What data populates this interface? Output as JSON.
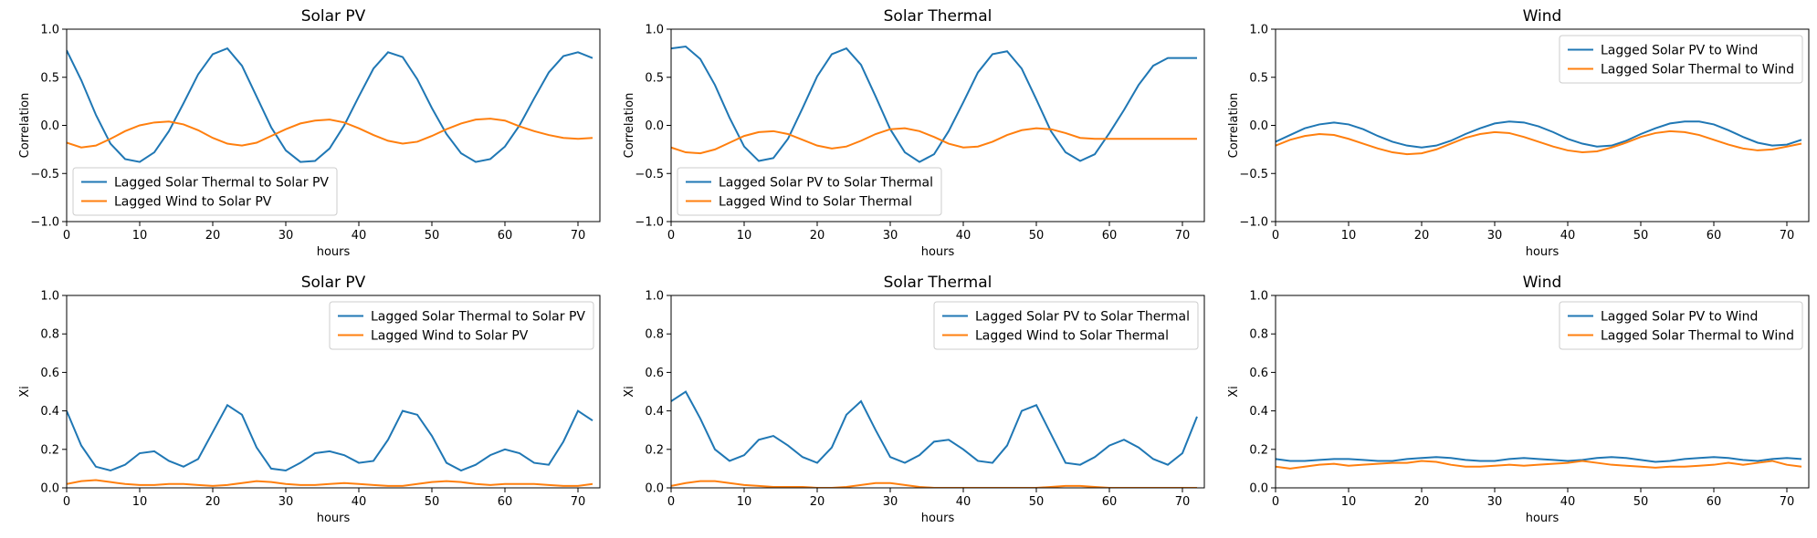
{
  "chart_data": [
    {
      "type": "line",
      "title": "Solar PV",
      "xlabel": "hours",
      "ylabel": "Correlation",
      "xlim": [
        0,
        73
      ],
      "ylim": [
        -1.0,
        1.0
      ],
      "xticks": [
        "0",
        "10",
        "20",
        "30",
        "40",
        "50",
        "60",
        "70"
      ],
      "yticks": [
        "−1.0",
        "−0.5",
        "0.0",
        "0.5",
        "1.0"
      ],
      "legend": "lower-left",
      "grid": false,
      "x": [
        0,
        2,
        4,
        6,
        8,
        10,
        12,
        14,
        16,
        18,
        20,
        22,
        24,
        26,
        28,
        30,
        32,
        34,
        36,
        38,
        40,
        42,
        44,
        46,
        48,
        50,
        52,
        54,
        56,
        58,
        60,
        62,
        64,
        66,
        68,
        70,
        72
      ],
      "series": [
        {
          "name": "Lagged Solar Thermal to Solar PV",
          "color": "#1f77b4",
          "values": [
            0.78,
            0.47,
            0.11,
            -0.19,
            -0.35,
            -0.38,
            -0.28,
            -0.06,
            0.23,
            0.53,
            0.74,
            0.8,
            0.62,
            0.3,
            -0.02,
            -0.26,
            -0.38,
            -0.37,
            -0.24,
            0.0,
            0.3,
            0.59,
            0.76,
            0.71,
            0.48,
            0.18,
            -0.09,
            -0.29,
            -0.38,
            -0.35,
            -0.22,
            0.0,
            0.28,
            0.55,
            0.72,
            0.76,
            0.7
          ]
        },
        {
          "name": "Lagged Wind to Solar PV",
          "color": "#ff7f0e",
          "values": [
            -0.18,
            -0.23,
            -0.21,
            -0.14,
            -0.06,
            0.0,
            0.03,
            0.04,
            0.01,
            -0.05,
            -0.13,
            -0.19,
            -0.21,
            -0.18,
            -0.11,
            -0.04,
            0.02,
            0.05,
            0.06,
            0.03,
            -0.03,
            -0.1,
            -0.16,
            -0.19,
            -0.17,
            -0.11,
            -0.04,
            0.02,
            0.06,
            0.07,
            0.05,
            -0.01,
            -0.06,
            -0.1,
            -0.13,
            -0.14,
            -0.13
          ]
        }
      ]
    },
    {
      "type": "line",
      "title": "Solar Thermal",
      "xlabel": "hours",
      "ylabel": "Correlation",
      "xlim": [
        0,
        73
      ],
      "ylim": [
        -1.0,
        1.0
      ],
      "xticks": [
        "0",
        "10",
        "20",
        "30",
        "40",
        "50",
        "60",
        "70"
      ],
      "yticks": [
        "−1.0",
        "−0.5",
        "0.0",
        "0.5",
        "1.0"
      ],
      "legend": "lower-left",
      "grid": false,
      "x": [
        0,
        2,
        4,
        6,
        8,
        10,
        12,
        14,
        16,
        18,
        20,
        22,
        24,
        26,
        28,
        30,
        32,
        34,
        36,
        38,
        40,
        42,
        44,
        46,
        48,
        50,
        52,
        54,
        56,
        58,
        60,
        62,
        64,
        66,
        68,
        70,
        72
      ],
      "series": [
        {
          "name": "Lagged Solar PV to Solar Thermal",
          "color": "#1f77b4",
          "values": [
            0.8,
            0.82,
            0.69,
            0.42,
            0.08,
            -0.22,
            -0.37,
            -0.34,
            -0.14,
            0.18,
            0.51,
            0.74,
            0.8,
            0.63,
            0.3,
            -0.04,
            -0.28,
            -0.38,
            -0.3,
            -0.06,
            0.24,
            0.55,
            0.74,
            0.77,
            0.59,
            0.27,
            -0.06,
            -0.28,
            -0.37,
            -0.3,
            -0.08,
            0.16,
            0.42,
            0.62,
            0.7,
            0.7,
            0.7
          ]
        },
        {
          "name": "Lagged Wind to Solar Thermal",
          "color": "#ff7f0e",
          "values": [
            -0.23,
            -0.28,
            -0.29,
            -0.25,
            -0.18,
            -0.11,
            -0.07,
            -0.06,
            -0.09,
            -0.15,
            -0.21,
            -0.24,
            -0.22,
            -0.16,
            -0.09,
            -0.04,
            -0.03,
            -0.06,
            -0.12,
            -0.19,
            -0.23,
            -0.22,
            -0.17,
            -0.1,
            -0.05,
            -0.03,
            -0.04,
            -0.08,
            -0.13,
            -0.14,
            -0.14,
            -0.14,
            -0.14,
            -0.14,
            -0.14,
            -0.14,
            -0.14
          ]
        }
      ]
    },
    {
      "type": "line",
      "title": "Wind",
      "xlabel": "hours",
      "ylabel": "Correlation",
      "xlim": [
        0,
        73
      ],
      "ylim": [
        -1.0,
        1.0
      ],
      "xticks": [
        "0",
        "10",
        "20",
        "30",
        "40",
        "50",
        "60",
        "70"
      ],
      "yticks": [
        "−1.0",
        "−0.5",
        "0.0",
        "0.5",
        "1.0"
      ],
      "legend": "upper-right",
      "grid": false,
      "x": [
        0,
        2,
        4,
        6,
        8,
        10,
        12,
        14,
        16,
        18,
        20,
        22,
        24,
        26,
        28,
        30,
        32,
        34,
        36,
        38,
        40,
        42,
        44,
        46,
        48,
        50,
        52,
        54,
        56,
        58,
        60,
        62,
        64,
        66,
        68,
        70,
        72
      ],
      "series": [
        {
          "name": "Lagged Solar PV to Wind",
          "color": "#1f77b4",
          "values": [
            -0.17,
            -0.1,
            -0.03,
            0.01,
            0.03,
            0.01,
            -0.04,
            -0.11,
            -0.17,
            -0.21,
            -0.23,
            -0.21,
            -0.16,
            -0.09,
            -0.03,
            0.02,
            0.04,
            0.03,
            -0.01,
            -0.07,
            -0.14,
            -0.19,
            -0.22,
            -0.21,
            -0.16,
            -0.09,
            -0.03,
            0.02,
            0.04,
            0.04,
            0.01,
            -0.05,
            -0.12,
            -0.18,
            -0.21,
            -0.2,
            -0.15
          ]
        },
        {
          "name": "Lagged Solar Thermal to Wind",
          "color": "#ff7f0e",
          "values": [
            -0.21,
            -0.15,
            -0.11,
            -0.09,
            -0.1,
            -0.14,
            -0.19,
            -0.24,
            -0.28,
            -0.3,
            -0.29,
            -0.25,
            -0.19,
            -0.13,
            -0.09,
            -0.07,
            -0.08,
            -0.12,
            -0.17,
            -0.22,
            -0.26,
            -0.28,
            -0.27,
            -0.23,
            -0.18,
            -0.12,
            -0.08,
            -0.06,
            -0.07,
            -0.1,
            -0.15,
            -0.2,
            -0.24,
            -0.26,
            -0.25,
            -0.22,
            -0.19
          ]
        }
      ]
    },
    {
      "type": "line",
      "title": "Solar PV",
      "xlabel": "hours",
      "ylabel": "Xi",
      "xlim": [
        0,
        73
      ],
      "ylim": [
        0.0,
        1.0
      ],
      "xticks": [
        "0",
        "10",
        "20",
        "30",
        "40",
        "50",
        "60",
        "70"
      ],
      "yticks": [
        "0.0",
        "0.2",
        "0.4",
        "0.6",
        "0.8",
        "1.0"
      ],
      "legend": "upper-right",
      "grid": false,
      "x": [
        0,
        2,
        4,
        6,
        8,
        10,
        12,
        14,
        16,
        18,
        20,
        22,
        24,
        26,
        28,
        30,
        32,
        34,
        36,
        38,
        40,
        42,
        44,
        46,
        48,
        50,
        52,
        54,
        56,
        58,
        60,
        62,
        64,
        66,
        68,
        70,
        72
      ],
      "series": [
        {
          "name": "Lagged Solar Thermal to Solar PV",
          "color": "#1f77b4",
          "values": [
            0.4,
            0.22,
            0.11,
            0.09,
            0.12,
            0.18,
            0.19,
            0.14,
            0.11,
            0.15,
            0.29,
            0.43,
            0.38,
            0.21,
            0.1,
            0.09,
            0.13,
            0.18,
            0.19,
            0.17,
            0.13,
            0.14,
            0.25,
            0.4,
            0.38,
            0.27,
            0.13,
            0.09,
            0.12,
            0.17,
            0.2,
            0.18,
            0.13,
            0.12,
            0.24,
            0.4,
            0.35
          ]
        },
        {
          "name": "Lagged Wind to Solar PV",
          "color": "#ff7f0e",
          "values": [
            0.02,
            0.035,
            0.04,
            0.03,
            0.02,
            0.015,
            0.015,
            0.02,
            0.02,
            0.015,
            0.01,
            0.015,
            0.025,
            0.035,
            0.03,
            0.02,
            0.015,
            0.015,
            0.02,
            0.025,
            0.02,
            0.015,
            0.01,
            0.01,
            0.02,
            0.03,
            0.035,
            0.03,
            0.02,
            0.015,
            0.02,
            0.02,
            0.02,
            0.015,
            0.01,
            0.01,
            0.02
          ]
        }
      ]
    },
    {
      "type": "line",
      "title": "Solar Thermal",
      "xlabel": "hours",
      "ylabel": "Xi",
      "xlim": [
        0,
        73
      ],
      "ylim": [
        0.0,
        1.0
      ],
      "xticks": [
        "0",
        "10",
        "20",
        "30",
        "40",
        "50",
        "60",
        "70"
      ],
      "yticks": [
        "0.0",
        "0.2",
        "0.4",
        "0.6",
        "0.8",
        "1.0"
      ],
      "legend": "upper-right",
      "grid": false,
      "x": [
        0,
        2,
        4,
        6,
        8,
        10,
        12,
        14,
        16,
        18,
        20,
        22,
        24,
        26,
        28,
        30,
        32,
        34,
        36,
        38,
        40,
        42,
        44,
        46,
        48,
        50,
        52,
        54,
        56,
        58,
        60,
        62,
        64,
        66,
        68,
        70,
        72
      ],
      "series": [
        {
          "name": "Lagged Solar PV to Solar Thermal",
          "color": "#1f77b4",
          "values": [
            0.45,
            0.5,
            0.36,
            0.2,
            0.14,
            0.17,
            0.25,
            0.27,
            0.22,
            0.16,
            0.13,
            0.21,
            0.38,
            0.45,
            0.3,
            0.16,
            0.13,
            0.17,
            0.24,
            0.25,
            0.2,
            0.14,
            0.13,
            0.22,
            0.4,
            0.43,
            0.28,
            0.13,
            0.12,
            0.16,
            0.22,
            0.25,
            0.21,
            0.15,
            0.12,
            0.18,
            0.37
          ]
        },
        {
          "name": "Lagged Wind to Solar Thermal",
          "color": "#ff7f0e",
          "values": [
            0.01,
            0.025,
            0.035,
            0.035,
            0.025,
            0.015,
            0.01,
            0.005,
            0.005,
            0.005,
            0.0,
            0.0,
            0.005,
            0.015,
            0.025,
            0.025,
            0.015,
            0.005,
            0.0,
            0.0,
            0.0,
            0.0,
            0.0,
            0.0,
            0.0,
            0.0,
            0.005,
            0.01,
            0.01,
            0.005,
            0.0,
            0.0,
            0.0,
            0.0,
            0.0,
            0.0,
            0.0
          ]
        }
      ]
    },
    {
      "type": "line",
      "title": "Wind",
      "xlabel": "hours",
      "ylabel": "Xi",
      "xlim": [
        0,
        73
      ],
      "ylim": [
        0.0,
        1.0
      ],
      "xticks": [
        "0",
        "10",
        "20",
        "30",
        "40",
        "50",
        "60",
        "70"
      ],
      "yticks": [
        "0.0",
        "0.2",
        "0.4",
        "0.6",
        "0.8",
        "1.0"
      ],
      "legend": "upper-right",
      "grid": false,
      "x": [
        0,
        2,
        4,
        6,
        8,
        10,
        12,
        14,
        16,
        18,
        20,
        22,
        24,
        26,
        28,
        30,
        32,
        34,
        36,
        38,
        40,
        42,
        44,
        46,
        48,
        50,
        52,
        54,
        56,
        58,
        60,
        62,
        64,
        66,
        68,
        70,
        72
      ],
      "series": [
        {
          "name": "Lagged Solar PV to Wind",
          "color": "#1f77b4",
          "values": [
            0.15,
            0.14,
            0.14,
            0.145,
            0.15,
            0.15,
            0.145,
            0.14,
            0.14,
            0.15,
            0.155,
            0.16,
            0.155,
            0.145,
            0.14,
            0.14,
            0.15,
            0.155,
            0.15,
            0.145,
            0.14,
            0.145,
            0.155,
            0.16,
            0.155,
            0.145,
            0.135,
            0.14,
            0.15,
            0.155,
            0.16,
            0.155,
            0.145,
            0.14,
            0.15,
            0.155,
            0.15
          ]
        },
        {
          "name": "Lagged Solar Thermal to Wind",
          "color": "#ff7f0e",
          "values": [
            0.11,
            0.1,
            0.11,
            0.12,
            0.125,
            0.115,
            0.12,
            0.125,
            0.13,
            0.13,
            0.14,
            0.135,
            0.12,
            0.11,
            0.11,
            0.115,
            0.12,
            0.115,
            0.12,
            0.125,
            0.13,
            0.14,
            0.13,
            0.12,
            0.115,
            0.11,
            0.105,
            0.11,
            0.11,
            0.115,
            0.12,
            0.13,
            0.12,
            0.13,
            0.14,
            0.12,
            0.11
          ]
        }
      ]
    }
  ]
}
